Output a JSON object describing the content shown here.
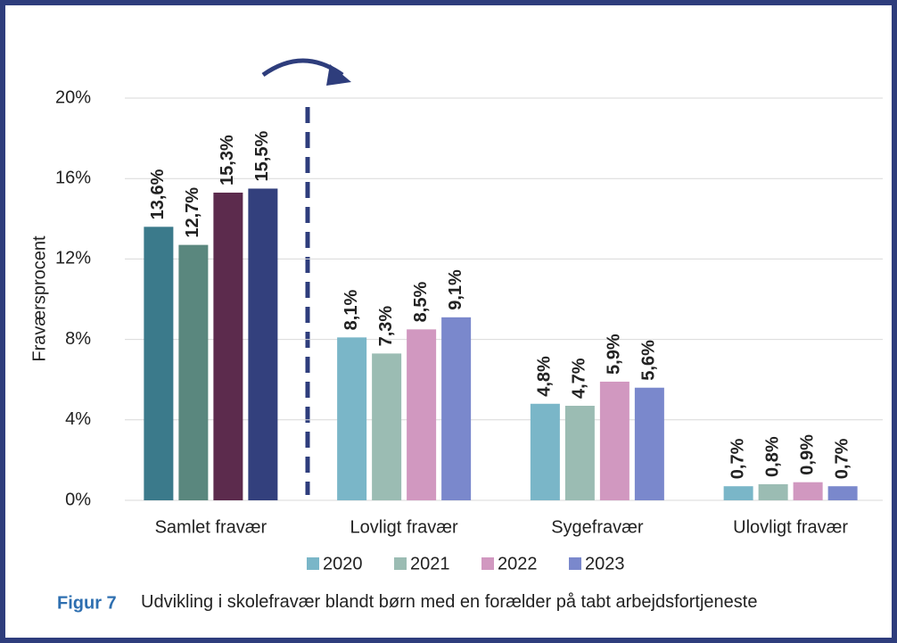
{
  "chart_data": {
    "type": "bar",
    "ylabel": "Fraværsprocent",
    "caption_label": "Figur 7",
    "caption": "Udvikling i skolefravær blandt børn med en forælder på tabt arbejdsfortjeneste",
    "categories": [
      "Samlet fravær",
      "Lovligt fravær",
      "Sygefravær",
      "Ulovligt fravær"
    ],
    "series": [
      {
        "name": "2020",
        "color": "#7ab6c8",
        "point_colors": [
          "#3b7a8b",
          "#7ab6c8",
          "#7ab6c8",
          "#7ab6c8"
        ],
        "values": [
          13.6,
          8.1,
          4.8,
          0.7
        ],
        "value_labels": [
          "13,6%",
          "8,1%",
          "4,8%",
          "0,7%"
        ]
      },
      {
        "name": "2021",
        "color": "#9bbcb3",
        "point_colors": [
          "#5a877e",
          "#9bbcb3",
          "#9bbcb3",
          "#9bbcb3"
        ],
        "values": [
          12.7,
          7.3,
          4.7,
          0.8
        ],
        "value_labels": [
          "12,7%",
          "7,3%",
          "4,7%",
          "0,8%"
        ]
      },
      {
        "name": "2022",
        "color": "#d198c0",
        "point_colors": [
          "#5c2b4d",
          "#d198c0",
          "#d198c0",
          "#d198c0"
        ],
        "values": [
          15.3,
          8.5,
          5.9,
          0.9
        ],
        "value_labels": [
          "15,3%",
          "8,5%",
          "5,9%",
          "0,9%"
        ]
      },
      {
        "name": "2023",
        "color": "#7a88cc",
        "point_colors": [
          "#33407d",
          "#7a88cc",
          "#7a88cc",
          "#7a88cc"
        ],
        "values": [
          15.5,
          9.1,
          5.6,
          0.7
        ],
        "value_labels": [
          "15,5%",
          "9,1%",
          "5,6%",
          "0,7%"
        ]
      }
    ],
    "ylim": [
      0,
      20
    ],
    "yticks": [
      {
        "value": 0,
        "label": "0%"
      },
      {
        "value": 4,
        "label": "4%"
      },
      {
        "value": 8,
        "label": "8%"
      },
      {
        "value": 12,
        "label": "12%"
      },
      {
        "value": 16,
        "label": "16%"
      },
      {
        "value": 20,
        "label": "20%"
      }
    ],
    "grid": true,
    "legend": "bottom"
  }
}
